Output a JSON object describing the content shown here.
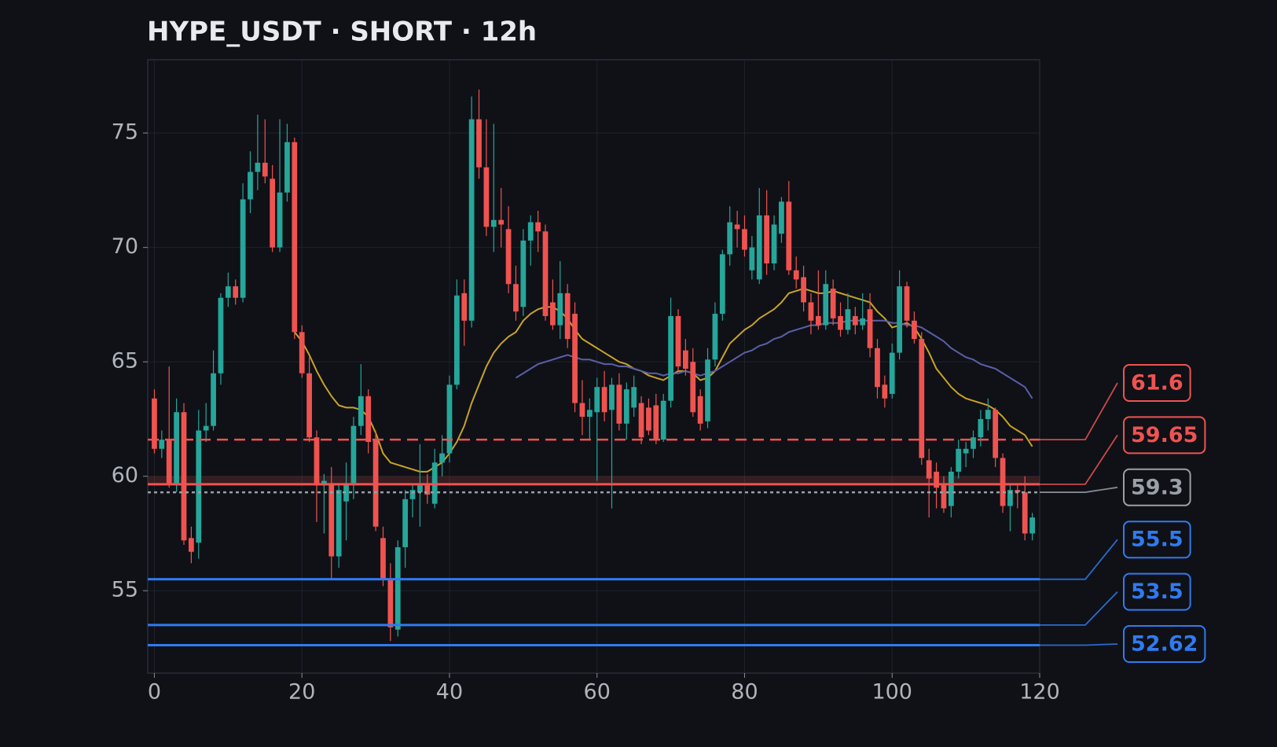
{
  "chart_data": {
    "type": "candlestick",
    "title": "HYPE_USDT · SHORT · 12h",
    "x": [
      0,
      1,
      2,
      3,
      4,
      5,
      6,
      7,
      8,
      9,
      10,
      11,
      12,
      13,
      14,
      15,
      16,
      17,
      18,
      19,
      20,
      21,
      22,
      23,
      24,
      25,
      26,
      27,
      28,
      29,
      30,
      31,
      32,
      33,
      34,
      35,
      36,
      37,
      38,
      39,
      40,
      41,
      42,
      43,
      44,
      45,
      46,
      47,
      48,
      49,
      50,
      51,
      52,
      53,
      54,
      55,
      56,
      57,
      58,
      59,
      60,
      61,
      62,
      63,
      64,
      65,
      66,
      67,
      68,
      69,
      70,
      71,
      72,
      73,
      74,
      75,
      76,
      77,
      78,
      79,
      80,
      81,
      82,
      83,
      84,
      85,
      86,
      87,
      88,
      89,
      90,
      91,
      92,
      93,
      94,
      95,
      96,
      97,
      98,
      99,
      100,
      101,
      102,
      103,
      104,
      105,
      106,
      107,
      108,
      109,
      110,
      111,
      112,
      113,
      114,
      115,
      116,
      117,
      118,
      119
    ],
    "open": [
      63.4,
      61.2,
      61.6,
      59.7,
      62.8,
      57.3,
      57.1,
      62.0,
      62.2,
      64.5,
      67.8,
      68.3,
      67.8,
      72.1,
      73.3,
      73.7,
      73.0,
      70.0,
      72.4,
      74.6,
      66.3,
      64.5,
      61.7,
      59.6,
      59.7,
      56.5,
      58.9,
      59.7,
      62.2,
      63.5,
      61.6,
      57.3,
      55.5,
      53.3,
      56.9,
      59.0,
      59.3,
      59.6,
      58.8,
      60.6,
      61.0,
      64.0,
      68.0,
      66.8,
      75.6,
      73.5,
      70.9,
      71.2,
      70.8,
      68.4,
      67.4,
      70.3,
      71.1,
      70.7,
      67.6,
      66.6,
      68.0,
      67.1,
      63.2,
      62.6,
      62.8,
      63.9,
      62.9,
      64.0,
      62.3,
      63.0,
      63.2,
      63.0,
      63.1,
      61.6,
      63.3,
      67.0,
      65.5,
      65.0,
      63.5,
      62.4,
      65.1,
      67.1,
      69.7,
      71.0,
      70.8,
      69.0,
      68.6,
      71.4,
      69.3,
      70.6,
      72.0,
      69.0,
      68.7,
      67.6,
      67.0,
      66.6,
      68.2,
      67.0,
      66.4,
      67.0,
      66.6,
      67.3,
      65.6,
      64.0,
      63.6,
      65.4,
      68.3,
      66.8,
      66.0,
      60.7,
      60.2,
      59.6,
      58.7,
      60.2,
      61.0,
      61.2,
      61.7,
      62.5,
      62.9,
      60.8,
      58.7,
      59.4,
      59.3,
      57.5
    ],
    "high": [
      63.8,
      62.0,
      64.8,
      63.4,
      63.2,
      57.8,
      62.9,
      63.2,
      65.5,
      68.0,
      68.9,
      68.6,
      72.8,
      74.2,
      75.8,
      75.6,
      73.6,
      75.6,
      75.4,
      74.8,
      66.6,
      65.2,
      62.0,
      60.1,
      60.4,
      59.7,
      60.6,
      62.6,
      64.9,
      63.8,
      62.0,
      57.8,
      56.2,
      57.2,
      59.4,
      59.6,
      61.4,
      60.1,
      61.2,
      61.8,
      64.4,
      68.6,
      68.6,
      76.6,
      76.9,
      75.6,
      75.4,
      72.6,
      71.8,
      69.2,
      70.8,
      71.4,
      71.6,
      71.0,
      68.6,
      69.4,
      68.4,
      67.6,
      64.2,
      63.4,
      64.3,
      64.6,
      64.3,
      64.5,
      64.1,
      64.4,
      63.5,
      63.4,
      63.6,
      63.6,
      67.8,
      67.3,
      66.0,
      65.6,
      63.8,
      65.6,
      67.6,
      69.9,
      71.8,
      71.6,
      71.4,
      70.5,
      72.6,
      72.5,
      71.4,
      72.2,
      72.9,
      69.6,
      69.2,
      68.0,
      69.0,
      69.0,
      68.6,
      67.6,
      68.0,
      67.4,
      68.0,
      68.0,
      66.0,
      64.4,
      65.8,
      69.0,
      68.5,
      67.2,
      66.3,
      61.2,
      60.6,
      60.0,
      60.4,
      61.6,
      61.5,
      62.0,
      62.9,
      63.4,
      63.0,
      61.0,
      59.6,
      59.6,
      60.0,
      58.4
    ],
    "low": [
      61.0,
      60.8,
      59.5,
      59.3,
      57.0,
      56.2,
      56.4,
      61.5,
      62.0,
      64.0,
      67.4,
      67.5,
      67.6,
      71.5,
      72.5,
      72.8,
      69.8,
      69.8,
      72.0,
      66.0,
      64.3,
      61.5,
      58.0,
      57.5,
      55.5,
      56.0,
      57.2,
      59.0,
      61.8,
      61.0,
      57.6,
      55.2,
      52.8,
      53.0,
      56.0,
      58.2,
      57.8,
      58.8,
      58.6,
      60.0,
      60.6,
      63.8,
      65.7,
      66.5,
      73.0,
      70.5,
      69.8,
      70.0,
      68.0,
      66.8,
      67.0,
      69.2,
      69.8,
      66.8,
      66.4,
      66.0,
      65.6,
      62.8,
      61.8,
      61.6,
      59.8,
      62.4,
      58.6,
      62.0,
      61.6,
      62.6,
      61.4,
      61.8,
      61.4,
      61.5,
      63.0,
      64.6,
      64.4,
      62.6,
      62.0,
      62.1,
      64.8,
      66.8,
      69.2,
      70.0,
      69.6,
      68.6,
      68.4,
      68.8,
      69.0,
      70.2,
      68.8,
      68.2,
      67.2,
      66.2,
      66.4,
      66.4,
      66.6,
      66.1,
      66.2,
      66.2,
      66.4,
      65.2,
      63.4,
      63.0,
      63.4,
      65.1,
      66.5,
      65.8,
      60.5,
      58.2,
      58.6,
      58.4,
      58.2,
      59.9,
      60.4,
      60.8,
      61.3,
      62.0,
      60.4,
      58.4,
      57.6,
      58.6,
      57.2,
      57.2
    ],
    "close": [
      61.2,
      61.6,
      59.7,
      62.8,
      57.2,
      56.7,
      62.0,
      62.2,
      64.5,
      67.8,
      68.3,
      67.8,
      72.1,
      73.3,
      73.7,
      73.1,
      70.0,
      72.4,
      74.6,
      66.3,
      64.5,
      61.7,
      59.6,
      59.8,
      56.5,
      59.4,
      59.7,
      62.2,
      63.5,
      61.5,
      57.8,
      55.5,
      53.4,
      56.9,
      59.0,
      59.4,
      59.6,
      59.2,
      60.6,
      61.0,
      64.0,
      67.9,
      66.8,
      75.6,
      73.5,
      70.9,
      71.2,
      71.0,
      68.4,
      67.2,
      70.3,
      71.1,
      70.7,
      67.0,
      66.6,
      68.0,
      66.0,
      63.2,
      62.6,
      62.9,
      63.9,
      62.8,
      64.0,
      62.3,
      63.8,
      63.9,
      61.7,
      62.0,
      61.6,
      63.3,
      67.0,
      64.8,
      64.7,
      62.8,
      62.3,
      65.1,
      67.1,
      69.7,
      71.1,
      70.8,
      69.9,
      70.0,
      71.4,
      69.3,
      71.0,
      72.0,
      69.0,
      68.6,
      67.6,
      66.8,
      66.6,
      68.4,
      66.9,
      66.4,
      67.3,
      66.6,
      66.9,
      65.6,
      63.9,
      63.4,
      65.4,
      68.3,
      66.8,
      66.0,
      60.8,
      59.9,
      59.5,
      58.6,
      60.2,
      61.2,
      61.2,
      61.7,
      62.5,
      62.9,
      60.8,
      58.7,
      59.4,
      59.3,
      57.5,
      58.2
    ],
    "up_color": "#26a69a",
    "down_color": "#ef5350",
    "series": [
      {
        "color": "#c9a227",
        "values": [
          null,
          null,
          null,
          null,
          null,
          null,
          null,
          null,
          null,
          null,
          null,
          null,
          null,
          null,
          null,
          null,
          null,
          null,
          null,
          66.3,
          65.9,
          65.3,
          64.6,
          64.0,
          63.5,
          63.1,
          63.0,
          63.0,
          62.9,
          62.6,
          61.9,
          61.0,
          60.6,
          60.5,
          60.4,
          60.3,
          60.2,
          60.2,
          60.4,
          60.6,
          61.0,
          61.5,
          62.2,
          63.2,
          64.0,
          64.8,
          65.4,
          65.8,
          66.1,
          66.3,
          66.8,
          67.1,
          67.3,
          67.4,
          67.4,
          67.2,
          66.9,
          66.4,
          66.0,
          65.8,
          65.6,
          65.4,
          65.2,
          65.0,
          64.9,
          64.7,
          64.6,
          64.4,
          64.3,
          64.2,
          64.4,
          64.6,
          64.6,
          64.5,
          64.2,
          64.3,
          64.6,
          65.2,
          65.8,
          66.1,
          66.4,
          66.6,
          66.9,
          67.1,
          67.3,
          67.6,
          68.0,
          68.1,
          68.2,
          68.1,
          68.0,
          68.0,
          68.1,
          68.0,
          67.9,
          67.8,
          67.7,
          67.6,
          67.2,
          66.9,
          66.5,
          66.6,
          66.7,
          66.5,
          66.0,
          65.4,
          64.7,
          64.3,
          63.9,
          63.6,
          63.4,
          63.3,
          63.2,
          63.1,
          62.9,
          62.6,
          62.2,
          62.0,
          61.8,
          61.3
        ]
      },
      {
        "color": "#5b5fa6",
        "values": [
          null,
          null,
          null,
          null,
          null,
          null,
          null,
          null,
          null,
          null,
          null,
          null,
          null,
          null,
          null,
          null,
          null,
          null,
          null,
          null,
          null,
          null,
          null,
          null,
          null,
          null,
          null,
          null,
          null,
          null,
          null,
          null,
          null,
          null,
          null,
          null,
          null,
          null,
          null,
          null,
          null,
          null,
          null,
          null,
          null,
          null,
          null,
          null,
          null,
          64.3,
          64.5,
          64.7,
          64.9,
          65.0,
          65.1,
          65.2,
          65.3,
          65.2,
          65.1,
          65.1,
          65.0,
          64.9,
          64.9,
          64.8,
          64.8,
          64.7,
          64.6,
          64.5,
          64.5,
          64.4,
          64.5,
          64.5,
          64.6,
          64.5,
          64.4,
          64.5,
          64.6,
          64.8,
          65.0,
          65.2,
          65.4,
          65.5,
          65.7,
          65.8,
          66.0,
          66.1,
          66.3,
          66.4,
          66.5,
          66.6,
          66.6,
          66.7,
          66.7,
          66.7,
          66.8,
          66.8,
          66.8,
          66.8,
          66.8,
          66.8,
          66.7,
          66.7,
          66.6,
          66.6,
          66.5,
          66.3,
          66.1,
          65.9,
          65.6,
          65.4,
          65.2,
          65.1,
          64.9,
          64.8,
          64.7,
          64.5,
          64.3,
          64.1,
          63.9,
          63.4
        ]
      }
    ],
    "levels": [
      {
        "value": 61.6,
        "color": "#ef5350",
        "style": "dashed"
      },
      {
        "value": 59.65,
        "color": "#ef5350",
        "style": "solid"
      },
      {
        "value": 59.3,
        "color": "#9aa0a6",
        "style": "dotted"
      },
      {
        "value": 55.5,
        "color": "#2f7bf0",
        "style": "solid"
      },
      {
        "value": 53.5,
        "color": "#2f7bf0",
        "style": "solid"
      },
      {
        "value": 52.62,
        "color": "#2f7bf0",
        "style": "solid"
      }
    ],
    "zone": {
      "from": 59.65,
      "to": 60.0,
      "color": "#ef5350"
    },
    "xlim": [
      -0.9,
      120
    ],
    "ylim": [
      51.4,
      78.2
    ],
    "xticks": [
      0,
      20,
      40,
      60,
      80,
      100,
      120
    ],
    "yticks": [
      55,
      60,
      65,
      70,
      75
    ],
    "grid": true
  }
}
